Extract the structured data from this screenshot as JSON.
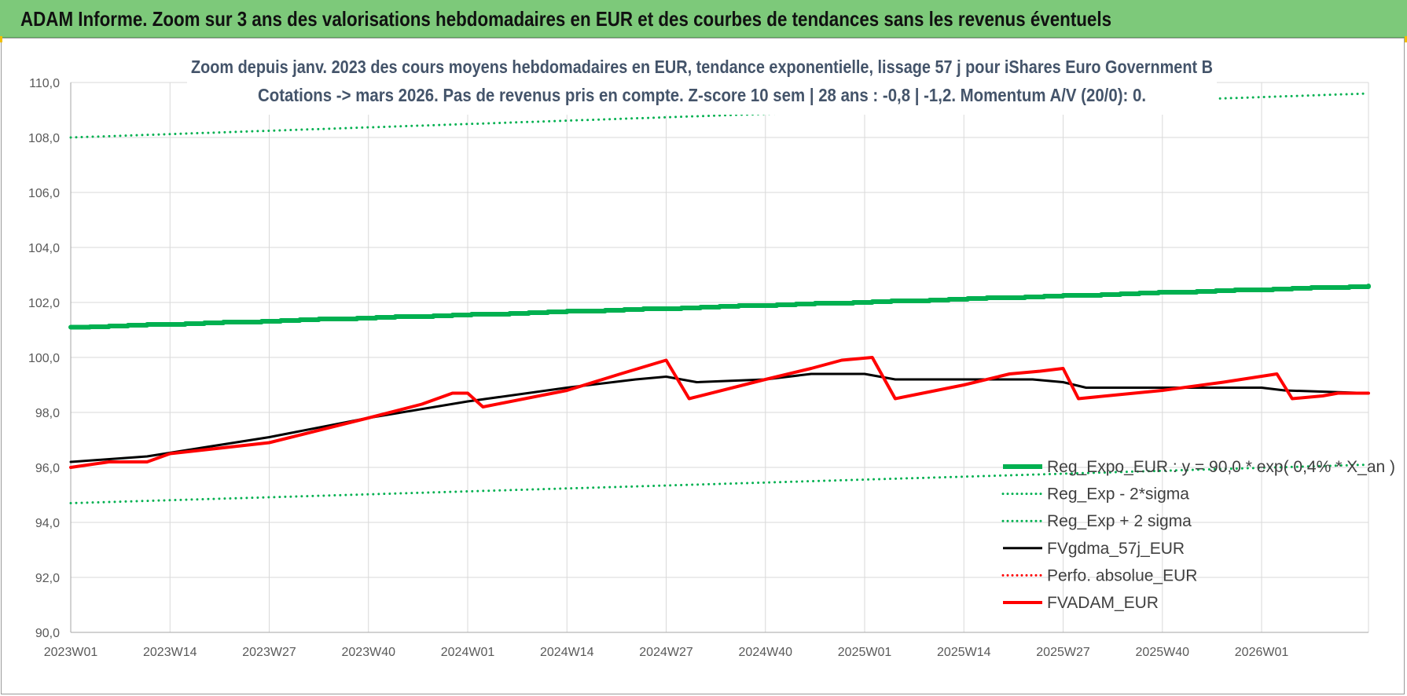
{
  "banner": {
    "title": "ADAM Informe. Zoom sur 3 ans des valorisations hebdomadaires en EUR et des courbes de tendances sans les revenus éventuels",
    "background_color": "#7dc97a"
  },
  "chart_data": {
    "type": "line",
    "title_line1": "Zoom depuis janv. 2023 des cours moyens hebdomadaires en EUR, tendance exponentielle, lissage 57 j pour iShares Euro Government B",
    "title_line2": "Cotations -> mars 2026. Pas de revenus pris en compte. Z-score 10 sem | 28 ans : -0,8 | -1,2. Momentum A/V (20/0): 0.",
    "xlabel": "",
    "ylabel": "",
    "x_ticks": [
      "2023W01",
      "2023W14",
      "2023W27",
      "2023W40",
      "2024W01",
      "2024W14",
      "2024W27",
      "2024W40",
      "2025W01",
      "2025W14",
      "2025W27",
      "2025W40",
      "2026W01"
    ],
    "x_tick_index": [
      0,
      13,
      26,
      39,
      52,
      65,
      78,
      91,
      104,
      117,
      130,
      143,
      156
    ],
    "x_count": 171,
    "y_ticks": [
      "90,0",
      "92,0",
      "94,0",
      "96,0",
      "98,0",
      "100,0",
      "102,0",
      "104,0",
      "106,0",
      "108,0",
      "110,0"
    ],
    "ylim": [
      90,
      110
    ],
    "grid": true,
    "legend_position": "bottom-right",
    "series": [
      {
        "name": "Reg_Expo_EUR : y = 90,0 * exp( 0,4% * X_an )",
        "style": "thick-step",
        "color": "#00b050",
        "width": 6,
        "points": [
          [
            0,
            101.1
          ],
          [
            170,
            102.6
          ]
        ]
      },
      {
        "name": "Reg_Exp - 2*sigma",
        "style": "dotted",
        "color": "#00b050",
        "width": 3,
        "points": [
          [
            0,
            94.7
          ],
          [
            170,
            96.1
          ]
        ]
      },
      {
        "name": "Reg_Exp + 2 sigma",
        "style": "dotted",
        "color": "#00b050",
        "width": 3,
        "points": [
          [
            0,
            108.0
          ],
          [
            170,
            109.6
          ]
        ]
      },
      {
        "name": "FVgdma_57j_EUR",
        "style": "solid",
        "color": "#000000",
        "width": 3,
        "points": [
          [
            0,
            96.2
          ],
          [
            10,
            96.4
          ],
          [
            26,
            97.1
          ],
          [
            39,
            97.8
          ],
          [
            52,
            98.4
          ],
          [
            65,
            98.9
          ],
          [
            74,
            99.2
          ],
          [
            78,
            99.3
          ],
          [
            82,
            99.1
          ],
          [
            91,
            99.2
          ],
          [
            97,
            99.4
          ],
          [
            104,
            99.4
          ],
          [
            108,
            99.2
          ],
          [
            117,
            99.2
          ],
          [
            126,
            99.2
          ],
          [
            130,
            99.1
          ],
          [
            133,
            98.9
          ],
          [
            143,
            98.9
          ],
          [
            156,
            98.9
          ],
          [
            159,
            98.8
          ],
          [
            170,
            98.7
          ]
        ]
      },
      {
        "name": "Perfo. absolue_EUR",
        "style": "dotted",
        "color": "#ff0000",
        "width": 3,
        "points": []
      },
      {
        "name": "FVADAM_EUR",
        "style": "solid",
        "color": "#ff0000",
        "width": 4,
        "points": [
          [
            0,
            96.0
          ],
          [
            5,
            96.2
          ],
          [
            10,
            96.2
          ],
          [
            13,
            96.5
          ],
          [
            26,
            96.9
          ],
          [
            39,
            97.8
          ],
          [
            46,
            98.3
          ],
          [
            50,
            98.7
          ],
          [
            52,
            98.7
          ],
          [
            54,
            98.2
          ],
          [
            65,
            98.8
          ],
          [
            72,
            99.4
          ],
          [
            78,
            99.9
          ],
          [
            81,
            98.5
          ],
          [
            91,
            99.2
          ],
          [
            97,
            99.6
          ],
          [
            101,
            99.9
          ],
          [
            105,
            100.0
          ],
          [
            108,
            98.5
          ],
          [
            117,
            99.0
          ],
          [
            123,
            99.4
          ],
          [
            127,
            99.5
          ],
          [
            130,
            99.6
          ],
          [
            132,
            98.5
          ],
          [
            143,
            98.8
          ],
          [
            151,
            99.1
          ],
          [
            158,
            99.4
          ],
          [
            160,
            98.5
          ],
          [
            164,
            98.6
          ],
          [
            166,
            98.7
          ],
          [
            170,
            98.7
          ]
        ]
      }
    ]
  }
}
